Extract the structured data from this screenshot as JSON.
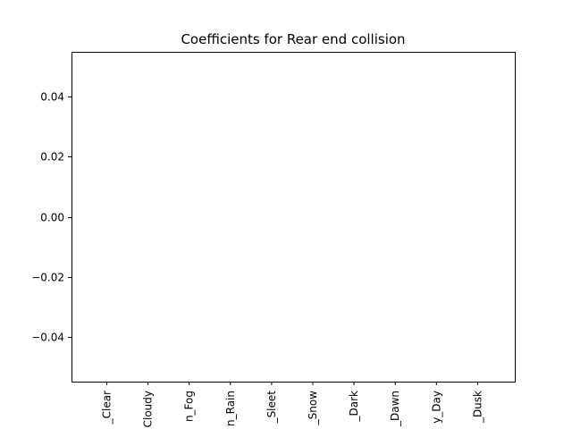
{
  "chart_data": {
    "type": "bar",
    "title": "Coefficients for Rear end collision",
    "xlabel": "",
    "ylabel": "",
    "categories": [
      "_Clear",
      "Cloudy",
      "n_Fog",
      "n_Rain",
      "_Sleet",
      "_Snow",
      "_Dark",
      "_Dawn",
      "y_Day",
      "_Dusk"
    ],
    "values": [
      0,
      0,
      0,
      0,
      0,
      0,
      0,
      0,
      0,
      0
    ],
    "ylim": [
      -0.055,
      0.055
    ],
    "yticks": [
      0.04,
      0.02,
      0.0,
      -0.02,
      -0.04
    ],
    "ytick_labels": [
      "0.04",
      "0.02",
      "0.00",
      "−0.02",
      "−0.04"
    ],
    "grid": false,
    "bar_color": "#1f77b4",
    "axis_color": "#000000"
  }
}
